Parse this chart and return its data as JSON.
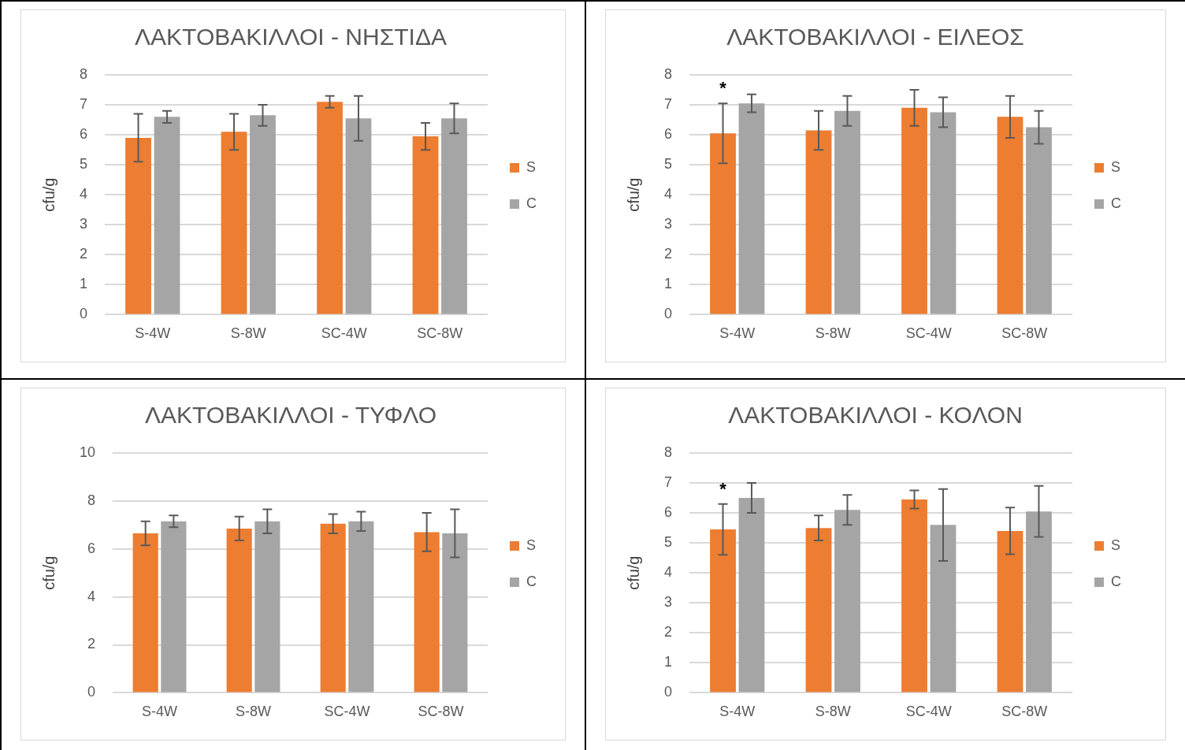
{
  "chart_data": [
    {
      "type": "bar",
      "title": "ΛΑΚΤΟΒΑΚΙΛΛΟΙ - ΝΗΣΤΙΔΑ",
      "ylabel": "cfu/g",
      "categories": [
        "S-4W",
        "S-8W",
        "SC-4W",
        "SC-8W"
      ],
      "series": [
        {
          "name": "S",
          "color": "#ed7d31",
          "values": [
            5.9,
            6.1,
            7.1,
            5.95
          ],
          "errors": [
            0.8,
            0.6,
            0.2,
            0.45
          ]
        },
        {
          "name": "C",
          "color": "#a5a5a5",
          "values": [
            6.6,
            6.65,
            6.55,
            6.55
          ],
          "errors": [
            0.2,
            0.35,
            0.75,
            0.5
          ]
        }
      ],
      "ylim": [
        0,
        8
      ],
      "yticks": [
        0,
        1,
        2,
        3,
        4,
        5,
        6,
        7,
        8
      ],
      "grid": "y",
      "legend": "right"
    },
    {
      "type": "bar",
      "title": "ΛΑΚΤΟΒΑΚΙΛΛΟΙ - ΕΙΛΕΟΣ",
      "ylabel": "cfu/g",
      "categories": [
        "S-4W",
        "S-8W",
        "SC-4W",
        "SC-8W"
      ],
      "series": [
        {
          "name": "S",
          "color": "#ed7d31",
          "values": [
            6.05,
            6.15,
            6.9,
            6.6
          ],
          "errors": [
            1.0,
            0.65,
            0.6,
            0.7
          ]
        },
        {
          "name": "C",
          "color": "#a5a5a5",
          "values": [
            7.05,
            6.8,
            6.75,
            6.25
          ],
          "errors": [
            0.3,
            0.5,
            0.5,
            0.55
          ]
        }
      ],
      "ylim": [
        0,
        8
      ],
      "yticks": [
        0,
        1,
        2,
        3,
        4,
        5,
        6,
        7,
        8
      ],
      "grid": "y",
      "legend": "right",
      "annotations": [
        "*"
      ]
    },
    {
      "type": "bar",
      "title": "ΛΑΚΤΟΒΑΚΙΛΛΟΙ - ΤΥΦΛΟ",
      "ylabel": "cfu/g",
      "categories": [
        "S-4W",
        "S-8W",
        "SC-4W",
        "SC-8W"
      ],
      "series": [
        {
          "name": "S",
          "color": "#ed7d31",
          "values": [
            6.65,
            6.85,
            7.05,
            6.7
          ],
          "errors": [
            0.5,
            0.5,
            0.4,
            0.8
          ]
        },
        {
          "name": "C",
          "color": "#a5a5a5",
          "values": [
            7.15,
            7.15,
            7.15,
            6.65
          ],
          "errors": [
            0.25,
            0.5,
            0.4,
            1.0
          ]
        }
      ],
      "ylim": [
        0,
        10
      ],
      "yticks": [
        0,
        2,
        4,
        6,
        8,
        10
      ],
      "grid": "y",
      "legend": "right"
    },
    {
      "type": "bar",
      "title": "ΛΑΚΤΟΒΑΚΙΛΛΟΙ - ΚΟΛΟΝ",
      "ylabel": "cfu/g",
      "categories": [
        "S-4W",
        "S-8W",
        "SC-4W",
        "SC-8W"
      ],
      "series": [
        {
          "name": "S",
          "color": "#ed7d31",
          "values": [
            5.45,
            5.5,
            6.45,
            5.4
          ],
          "errors": [
            0.85,
            0.42,
            0.3,
            0.78
          ]
        },
        {
          "name": "C",
          "color": "#a5a5a5",
          "values": [
            6.5,
            6.1,
            5.6,
            6.05
          ],
          "errors": [
            0.5,
            0.5,
            1.2,
            0.85
          ]
        }
      ],
      "ylim": [
        0,
        8
      ],
      "yticks": [
        0,
        1,
        2,
        3,
        4,
        5,
        6,
        7,
        8
      ],
      "grid": "y",
      "legend": "right",
      "annotations": [
        "*"
      ]
    }
  ]
}
